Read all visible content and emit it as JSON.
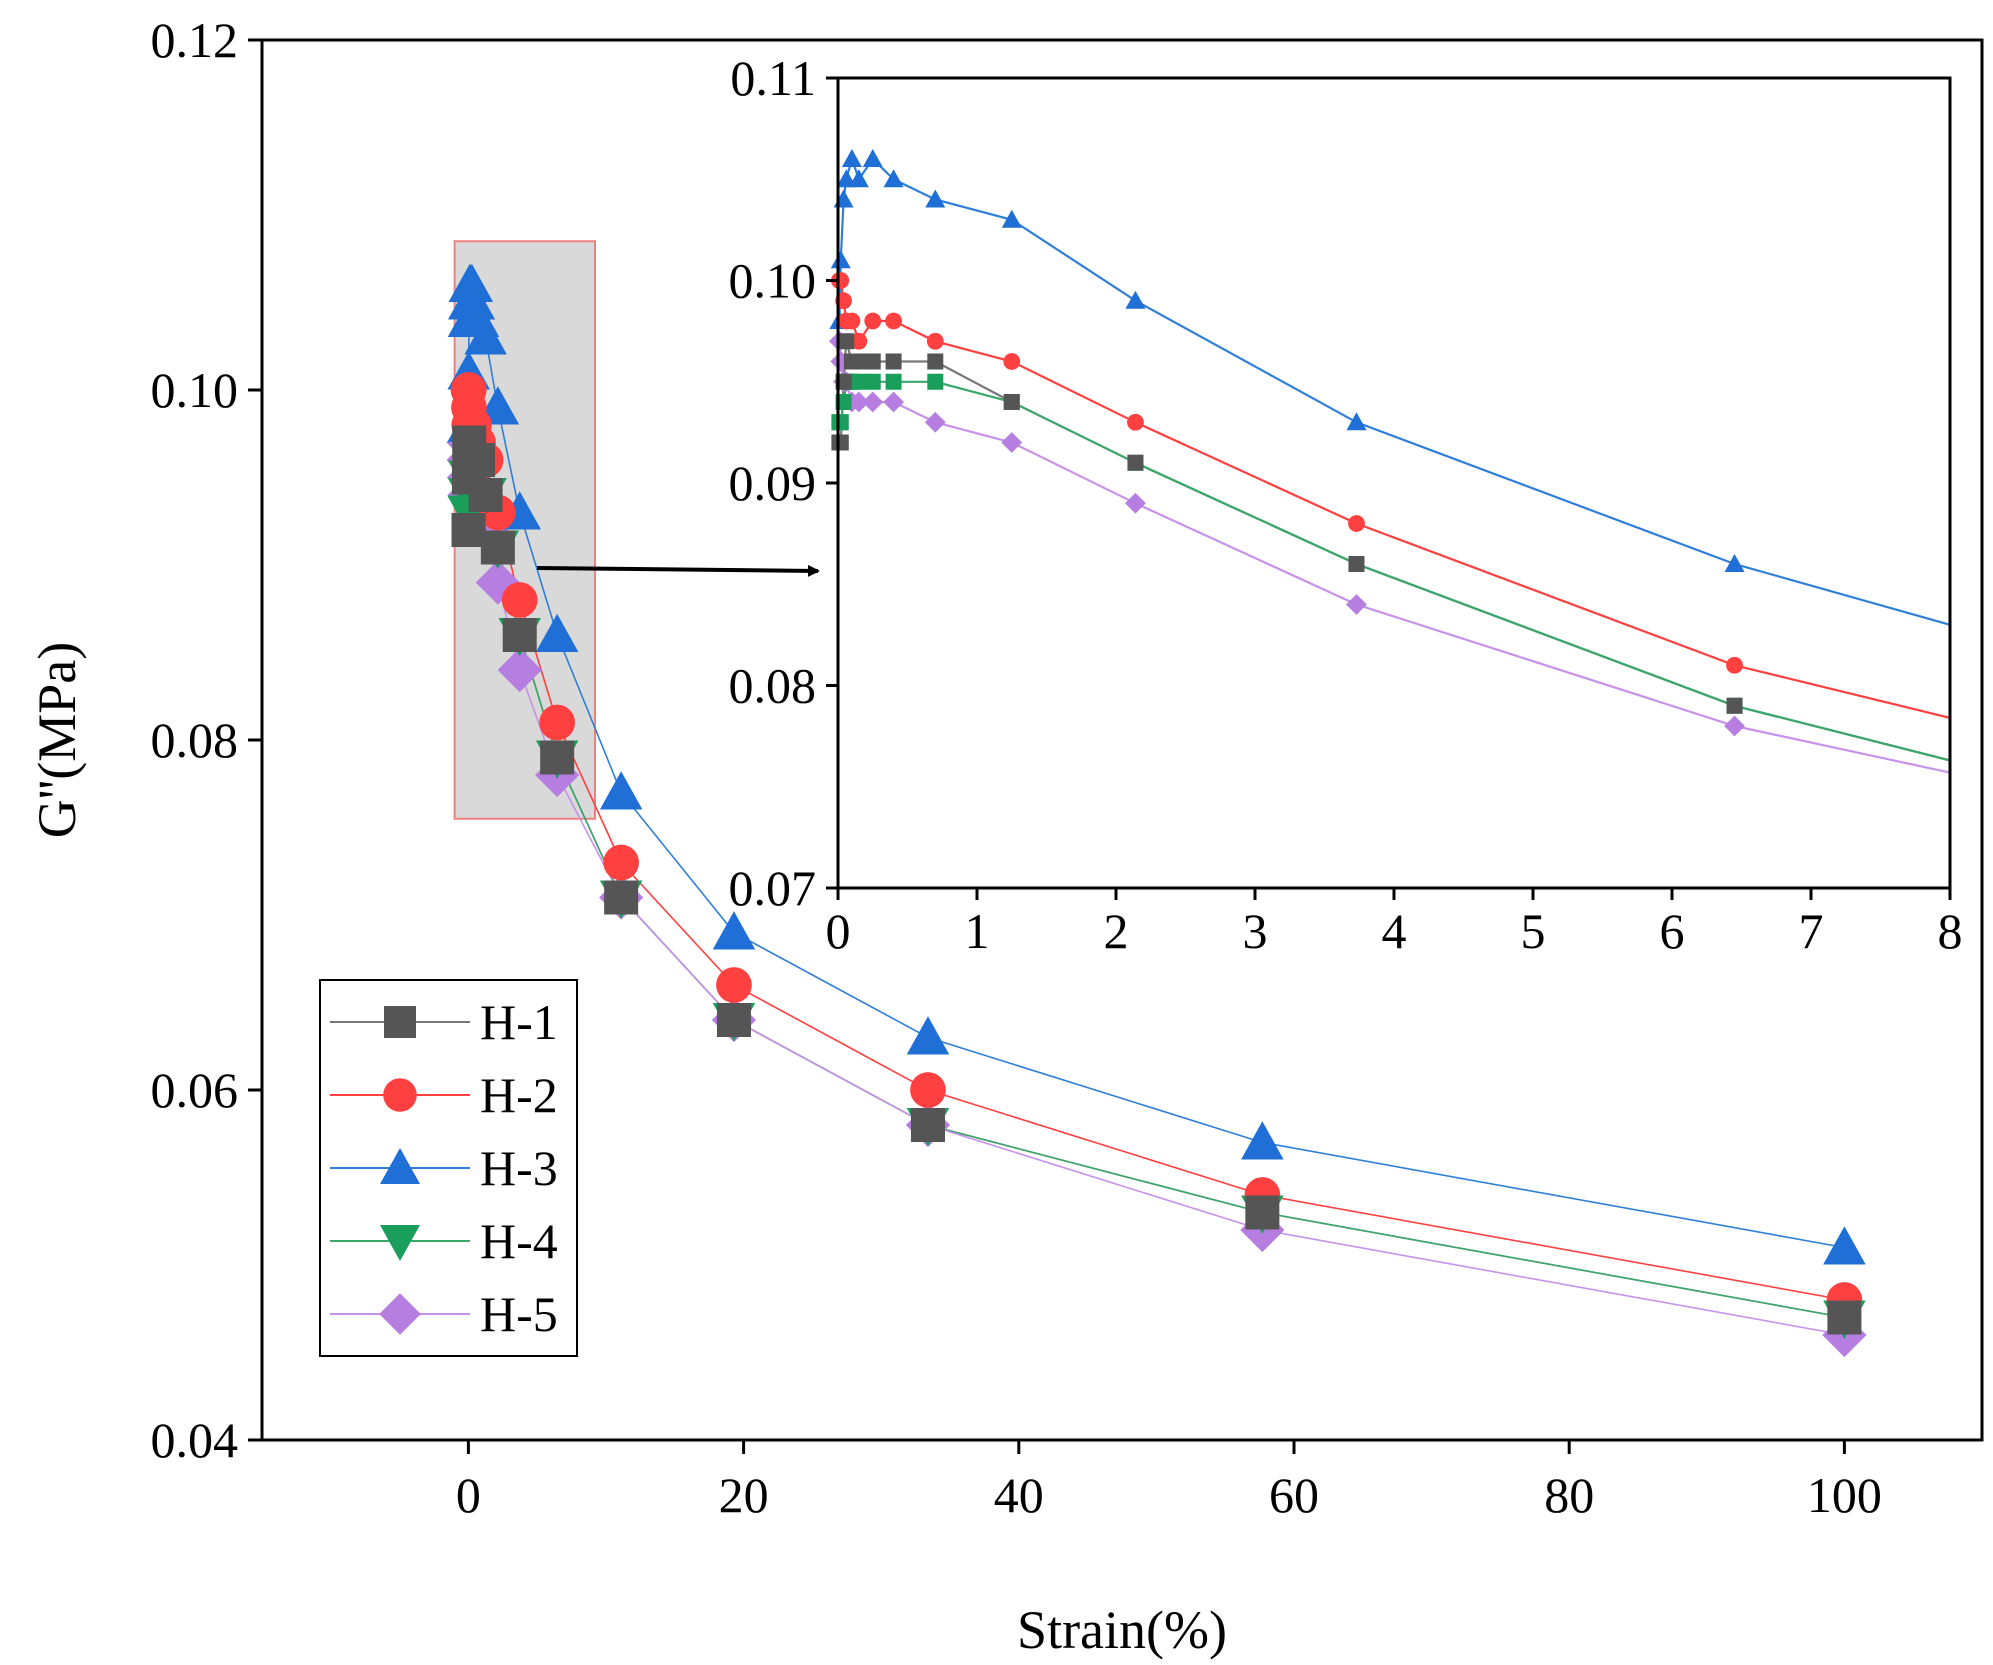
{
  "chart_data": [
    {
      "id": "main",
      "type": "line",
      "title": "",
      "xlabel": "Strain(%)",
      "ylabel": "G''(MPa)",
      "xlim": [
        -15,
        110
      ],
      "ylim": [
        0.04,
        0.12
      ],
      "x_ticks": [
        0,
        20,
        40,
        60,
        80,
        100
      ],
      "x_tick_labels": [
        "0",
        "20",
        "40",
        "60",
        "80",
        "100"
      ],
      "y_ticks": [
        0.04,
        0.06,
        0.08,
        0.1,
        0.12
      ],
      "y_tick_labels": [
        "0.04",
        "0.06",
        "0.08",
        "0.10",
        "0.12"
      ],
      "grid": false,
      "legend_position": "bottom-left",
      "highlight_region": {
        "x": [
          -1,
          9.2
        ],
        "y": [
          0.0755,
          0.1085
        ],
        "fill": "#d9d9d9",
        "stroke": "#f08080"
      },
      "series": [
        {
          "name": "H-1",
          "marker": "square",
          "color": "#555555",
          "line_color": "#777777",
          "x": [
            0.01,
            0.02,
            0.04,
            0.06,
            0.1,
            0.15,
            0.25,
            0.4,
            0.7,
            1.25,
            2.14,
            3.73,
            6.45,
            11.1,
            19.3,
            33.4,
            57.7,
            100
          ],
          "y": [
            0.092,
            0.092,
            0.095,
            0.097,
            0.096,
            0.096,
            0.096,
            0.096,
            0.096,
            0.094,
            0.091,
            0.086,
            0.079,
            0.071,
            0.064,
            0.058,
            0.053,
            0.047
          ]
        },
        {
          "name": "H-2",
          "marker": "circle",
          "color": "#ff4040",
          "line_color": "#ff4040",
          "x": [
            0.01,
            0.02,
            0.04,
            0.06,
            0.1,
            0.15,
            0.25,
            0.4,
            0.7,
            1.25,
            2.14,
            3.73,
            6.45,
            11.1,
            19.3,
            33.4,
            57.7,
            100
          ],
          "y": [
            0.1,
            0.1,
            0.099,
            0.098,
            0.098,
            0.097,
            0.098,
            0.098,
            0.097,
            0.096,
            0.093,
            0.088,
            0.081,
            0.073,
            0.066,
            0.06,
            0.054,
            0.048
          ]
        },
        {
          "name": "H-3",
          "marker": "triangle-up",
          "color": "#1f6fd6",
          "line_color": "#2f7fd8",
          "x": [
            0.01,
            0.02,
            0.04,
            0.06,
            0.1,
            0.15,
            0.25,
            0.4,
            0.7,
            1.25,
            2.14,
            3.73,
            6.45,
            11.1,
            19.3,
            33.4,
            57.7,
            100
          ],
          "y": [
            0.098,
            0.101,
            0.104,
            0.105,
            0.106,
            0.105,
            0.106,
            0.105,
            0.104,
            0.103,
            0.099,
            0.093,
            0.086,
            0.077,
            0.069,
            0.063,
            0.057,
            0.051
          ]
        },
        {
          "name": "H-4",
          "marker": "triangle-down",
          "color": "#1a9e5c",
          "line_color": "#3aa86a",
          "x": [
            0.01,
            0.02,
            0.04,
            0.06,
            0.1,
            0.15,
            0.25,
            0.4,
            0.7,
            1.25,
            2.14,
            3.73,
            6.45,
            11.1,
            19.3,
            33.4,
            57.7,
            100
          ],
          "y": [
            0.093,
            0.093,
            0.094,
            0.095,
            0.095,
            0.095,
            0.095,
            0.095,
            0.095,
            0.094,
            0.091,
            0.086,
            0.079,
            0.071,
            0.064,
            0.058,
            0.053,
            0.047
          ]
        },
        {
          "name": "H-5",
          "marker": "diamond",
          "color": "#b57ee0",
          "line_color": "#c792ea",
          "x": [
            0.01,
            0.02,
            0.04,
            0.06,
            0.1,
            0.15,
            0.25,
            0.4,
            0.7,
            1.25,
            2.14,
            3.73,
            6.45,
            11.1,
            19.3,
            33.4,
            57.7,
            100
          ],
          "y": [
            0.097,
            0.096,
            0.095,
            0.095,
            0.094,
            0.094,
            0.094,
            0.094,
            0.093,
            0.092,
            0.089,
            0.084,
            0.078,
            0.071,
            0.064,
            0.058,
            0.052,
            0.046
          ]
        }
      ]
    },
    {
      "id": "inset",
      "type": "line",
      "title": "",
      "xlabel": "",
      "ylabel": "",
      "xlim": [
        0,
        8
      ],
      "ylim": [
        0.07,
        0.11
      ],
      "x_ticks": [
        0,
        1,
        2,
        3,
        4,
        5,
        6,
        7,
        8
      ],
      "x_tick_labels": [
        "0",
        "1",
        "2",
        "3",
        "4",
        "5",
        "6",
        "7",
        "8"
      ],
      "y_ticks": [
        0.07,
        0.08,
        0.09,
        0.1,
        0.11
      ],
      "y_tick_labels": [
        "0.07",
        "0.08",
        "0.09",
        "0.10",
        "0.11"
      ],
      "grid": false,
      "legend_position": "none",
      "series": [
        {
          "name": "H-1",
          "marker": "square",
          "color": "#555555",
          "line_color": "#777777",
          "x": [
            0.01,
            0.02,
            0.04,
            0.06,
            0.1,
            0.15,
            0.25,
            0.4,
            0.7,
            1.25,
            2.14,
            3.73,
            6.45,
            8
          ],
          "y": [
            0.092,
            0.092,
            0.095,
            0.097,
            0.096,
            0.096,
            0.096,
            0.096,
            0.096,
            0.094,
            0.091,
            0.086,
            0.079,
            0.0763
          ]
        },
        {
          "name": "H-2",
          "marker": "circle",
          "color": "#ff4040",
          "line_color": "#ff4040",
          "x": [
            0.01,
            0.02,
            0.04,
            0.06,
            0.1,
            0.15,
            0.25,
            0.4,
            0.7,
            1.25,
            2.14,
            3.73,
            6.45,
            8
          ],
          "y": [
            0.1,
            0.1,
            0.099,
            0.098,
            0.098,
            0.097,
            0.098,
            0.098,
            0.097,
            0.096,
            0.093,
            0.088,
            0.081,
            0.0784
          ]
        },
        {
          "name": "H-3",
          "marker": "triangle-up",
          "color": "#1f6fd6",
          "line_color": "#2f7fd8",
          "x": [
            0.01,
            0.02,
            0.04,
            0.06,
            0.1,
            0.15,
            0.25,
            0.4,
            0.7,
            1.25,
            2.14,
            3.73,
            6.45,
            8
          ],
          "y": [
            0.098,
            0.101,
            0.104,
            0.105,
            0.106,
            0.105,
            0.106,
            0.105,
            0.104,
            0.103,
            0.099,
            0.093,
            0.086,
            0.083
          ]
        },
        {
          "name": "H-4",
          "marker": "square",
          "color": "#1a9e5c",
          "line_color": "#3aa86a",
          "x": [
            0.01,
            0.02,
            0.04,
            0.06,
            0.1,
            0.15,
            0.25,
            0.4,
            0.7,
            1.25,
            2.14,
            3.73,
            6.45,
            8
          ],
          "y": [
            0.093,
            0.093,
            0.094,
            0.095,
            0.095,
            0.095,
            0.095,
            0.095,
            0.095,
            0.094,
            0.091,
            0.086,
            0.079,
            0.0763
          ]
        },
        {
          "name": "H-5",
          "marker": "diamond",
          "color": "#b57ee0",
          "line_color": "#c792ea",
          "x": [
            0.01,
            0.02,
            0.04,
            0.06,
            0.1,
            0.15,
            0.25,
            0.4,
            0.7,
            1.25,
            2.14,
            3.73,
            6.45,
            8
          ],
          "y": [
            0.097,
            0.096,
            0.095,
            0.095,
            0.094,
            0.094,
            0.094,
            0.094,
            0.093,
            0.092,
            0.089,
            0.084,
            0.078,
            0.0757
          ]
        }
      ]
    }
  ]
}
